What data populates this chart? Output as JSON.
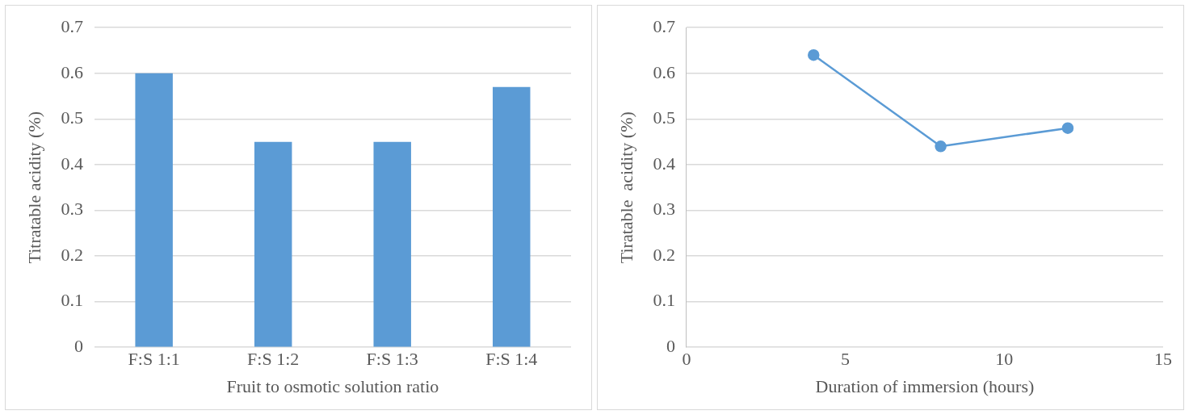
{
  "chart_data": [
    {
      "type": "bar",
      "xlabel": "Fruit to osmotic solution ratio",
      "ylabel": "Titratable acidity (%)",
      "categories": [
        "F:S 1:1",
        "F:S 1:2",
        "F:S 1:3",
        "F:S 1:4"
      ],
      "series": [
        {
          "color": "#5b9bd5",
          "values": [
            0.6,
            0.45,
            0.45,
            0.57
          ]
        }
      ],
      "ylim": [
        0,
        0.7
      ],
      "yticks": [
        0,
        0.1,
        0.2,
        0.3,
        0.4,
        0.5,
        0.6,
        0.7
      ],
      "grid": "y",
      "legend": false
    },
    {
      "type": "line",
      "xlabel": "Duration of immersion (hours)",
      "ylabel": "Tiratable  acidity (%)",
      "x": [
        4,
        8,
        12
      ],
      "series": [
        {
          "color": "#5b9bd5",
          "values": [
            0.64,
            0.44,
            0.48
          ]
        }
      ],
      "xlim": [
        0,
        15
      ],
      "xticks": [
        0,
        5,
        10,
        15
      ],
      "ylim": [
        0,
        0.7
      ],
      "yticks": [
        0,
        0.1,
        0.2,
        0.3,
        0.4,
        0.5,
        0.6,
        0.7
      ],
      "grid": "y",
      "legend": false,
      "marker": "circle",
      "line_style": "solid"
    }
  ]
}
